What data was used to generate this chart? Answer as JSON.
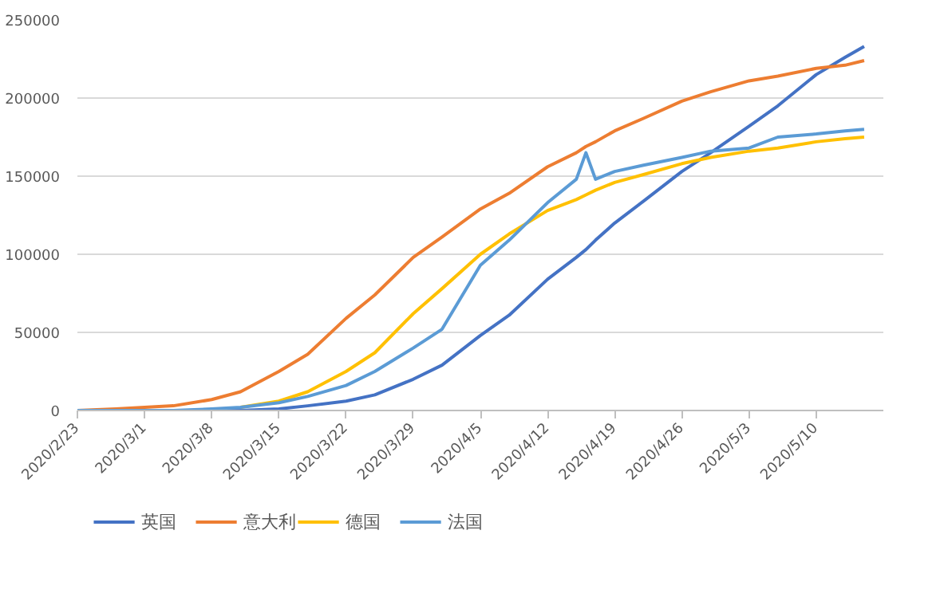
{
  "chart_data": {
    "type": "line",
    "x": [
      "2020-02-23",
      "2020-02-27",
      "2020-03-01",
      "2020-03-04",
      "2020-03-08",
      "2020-03-11",
      "2020-03-15",
      "2020-03-18",
      "2020-03-22",
      "2020-03-25",
      "2020-03-29",
      "2020-04-01",
      "2020-04-05",
      "2020-04-08",
      "2020-04-12",
      "2020-04-15",
      "2020-04-16",
      "2020-04-17",
      "2020-04-19",
      "2020-04-22",
      "2020-04-26",
      "2020-04-29",
      "2020-05-03",
      "2020-05-06",
      "2020-05-10",
      "2020-05-13",
      "2020-05-15"
    ],
    "series": [
      {
        "name": "英国",
        "color": "#4472c4",
        "values": [
          0,
          0,
          0,
          0,
          0,
          0,
          1000,
          3000,
          6000,
          10000,
          20000,
          29000,
          48000,
          61000,
          84000,
          98000,
          103000,
          109000,
          120000,
          134000,
          153000,
          165000,
          182000,
          195000,
          215000,
          226000,
          233000
        ]
      },
      {
        "name": "意大利",
        "color": "#ed7d31",
        "values": [
          0,
          1000,
          2000,
          3000,
          7000,
          12000,
          25000,
          36000,
          59000,
          74000,
          98000,
          111000,
          129000,
          139000,
          156000,
          165000,
          169000,
          172000,
          179000,
          187000,
          198000,
          204000,
          211000,
          214000,
          219000,
          221000,
          224000
        ]
      },
      {
        "name": "德国",
        "color": "#ffc000",
        "values": [
          null,
          null,
          null,
          null,
          null,
          2000,
          6000,
          12000,
          25000,
          37000,
          62000,
          78000,
          100000,
          113000,
          128000,
          135000,
          138000,
          141000,
          146000,
          151000,
          158000,
          162000,
          166000,
          168000,
          172000,
          174000,
          175000
        ]
      },
      {
        "name": "法国",
        "color": "#5b9bd5",
        "values": [
          0,
          0,
          0,
          0,
          1000,
          2000,
          5000,
          9000,
          16000,
          25000,
          40000,
          52000,
          93000,
          109000,
          133000,
          148000,
          165000,
          148000,
          153000,
          157000,
          162000,
          166000,
          168000,
          175000,
          177000,
          179000,
          180000
        ]
      }
    ],
    "xlim": [
      "2020-02-23",
      "2020-05-17"
    ],
    "xticks": [
      {
        "value": "2020-02-23",
        "label": "2020/2/23"
      },
      {
        "value": "2020-03-01",
        "label": "2020/3/1"
      },
      {
        "value": "2020-03-08",
        "label": "2020/3/8"
      },
      {
        "value": "2020-03-15",
        "label": "2020/3/15"
      },
      {
        "value": "2020-03-22",
        "label": "2020/3/22"
      },
      {
        "value": "2020-03-29",
        "label": "2020/3/29"
      },
      {
        "value": "2020-04-05",
        "label": "2020/4/5"
      },
      {
        "value": "2020-04-12",
        "label": "2020/4/12"
      },
      {
        "value": "2020-04-19",
        "label": "2020/4/19"
      },
      {
        "value": "2020-04-26",
        "label": "2020/4/26"
      },
      {
        "value": "2020-05-03",
        "label": "2020/5/3"
      },
      {
        "value": "2020-05-10",
        "label": "2020/5/10"
      }
    ],
    "ylim": [
      0,
      250000
    ],
    "yticks": [
      0,
      50000,
      100000,
      150000,
      200000,
      250000
    ],
    "grid": "y",
    "legend": "bottom",
    "marker": "none",
    "line_style": "solid"
  }
}
